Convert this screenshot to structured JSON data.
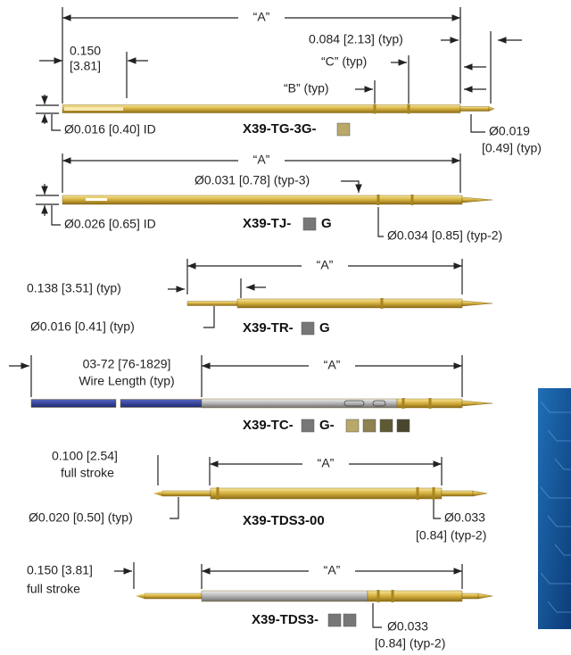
{
  "parts": [
    {
      "a_dim": "“A”",
      "part_number": "X39-TG-3G-",
      "callouts": [
        "0.150",
        "[3.81]",
        "0.084 [2.13] (typ)",
        "“C” (typ)",
        "“B” (typ)",
        "Ø0.016 [0.40] ID",
        "Ø0.019",
        "[0.49] (typ)"
      ]
    },
    {
      "a_dim": "“A”",
      "part_number": "X39-TJ-",
      "suffix": "G",
      "callouts": [
        "Ø0.031 [0.78] (typ-3)",
        "Ø0.026 [0.65] ID",
        "Ø0.034 [0.85] (typ-2)"
      ]
    },
    {
      "a_dim": "“A”",
      "part_number": "X39-TR-",
      "suffix": "G",
      "callouts": [
        "0.138 [3.51] (typ)",
        "Ø0.016 [0.41] (typ)"
      ]
    },
    {
      "a_dim": "“A”",
      "part_number": "X39-TC-",
      "suffix": "G-",
      "callouts": [
        "03-72 [76-1829]",
        "Wire Length (typ)"
      ]
    },
    {
      "a_dim": "“A”",
      "part_number": "X39-TDS3-00",
      "callouts": [
        "0.100 [2.54]",
        "full stroke",
        "Ø0.020 [0.50] (typ)",
        "Ø0.033",
        "[0.84] (typ-2)"
      ]
    },
    {
      "a_dim": "“A”",
      "part_number": "X39-TDS3-",
      "callouts": [
        "0.150 [3.81]",
        "full stroke",
        "Ø0.033",
        "[0.84] (typ-2)"
      ]
    }
  ]
}
